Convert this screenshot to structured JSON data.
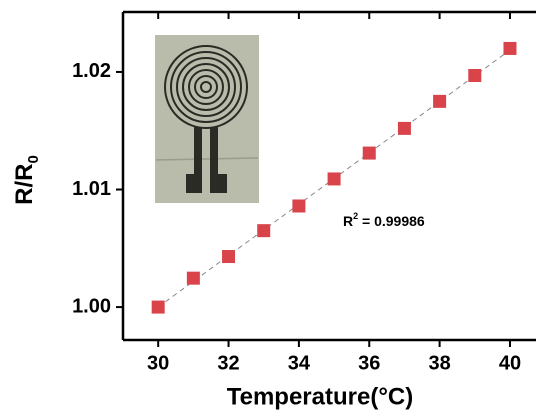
{
  "chart_data": {
    "type": "scatter",
    "ylabel": [
      "R/R",
      "0"
    ],
    "xlabel": "Temperature(°C)",
    "annotation": [
      "R",
      "2",
      " = 0.99986"
    ],
    "x": [
      30,
      31,
      32,
      33,
      34,
      35,
      36,
      37,
      38,
      39,
      40
    ],
    "values": [
      1.0,
      1.00246,
      1.0043,
      1.0065,
      1.0086,
      1.0109,
      1.0131,
      1.0152,
      1.0175,
      1.0197,
      1.022
    ],
    "color": "#d9434a",
    "xlim": [
      29,
      40.7
    ],
    "ylim": [
      0.9972,
      1.0251
    ],
    "xticks": [
      30,
      32,
      34,
      36,
      38,
      40
    ],
    "yticks": [
      {
        "value": 1.0,
        "label": "1.00"
      },
      {
        "value": 1.01,
        "label": "1.01"
      },
      {
        "value": 1.02,
        "label": "1.02"
      }
    ]
  }
}
